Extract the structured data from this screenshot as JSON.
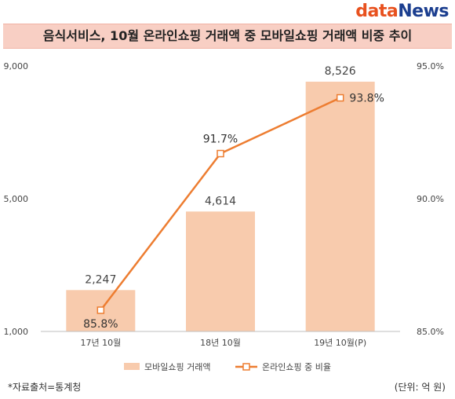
{
  "brand": {
    "part1": "data",
    "part2": "News"
  },
  "title": "음식서비스, 10월 온라인쇼핑 거래액 중 모바일쇼핑 거래액 비중 추이",
  "footer": {
    "source": "*자료출처=통계청",
    "unit": "(단위: 억 원)"
  },
  "colors": {
    "bar": "#f8cbad",
    "line": "#ed7d31",
    "title_bg": "#f8cfc4"
  },
  "chart_data": {
    "type": "bar",
    "categories": [
      "17년 10월",
      "18년 10월",
      "19년 10월(P)"
    ],
    "series": [
      {
        "name": "모바일쇼핑 거래액",
        "type": "bar",
        "axis": "left",
        "values": [
          2247,
          4614,
          8526
        ],
        "labels": [
          "2,247",
          "4,614",
          "8,526"
        ]
      },
      {
        "name": "온라인쇼핑 중 비율",
        "type": "line",
        "axis": "right",
        "values": [
          85.8,
          91.7,
          93.8
        ],
        "labels": [
          "85.8%",
          "91.7%",
          "93.8%"
        ]
      }
    ],
    "left_axis": {
      "range": [
        1000,
        9000
      ],
      "ticks": [
        "1,000",
        "5,000",
        "9,000"
      ],
      "tick_values": [
        1000,
        5000,
        9000
      ]
    },
    "right_axis": {
      "range": [
        85.0,
        95.0
      ],
      "ticks": [
        "85.0%",
        "90.0%",
        "95.0%"
      ],
      "tick_values": [
        85.0,
        90.0,
        95.0
      ]
    },
    "grid": false,
    "legend_position": "bottom"
  }
}
